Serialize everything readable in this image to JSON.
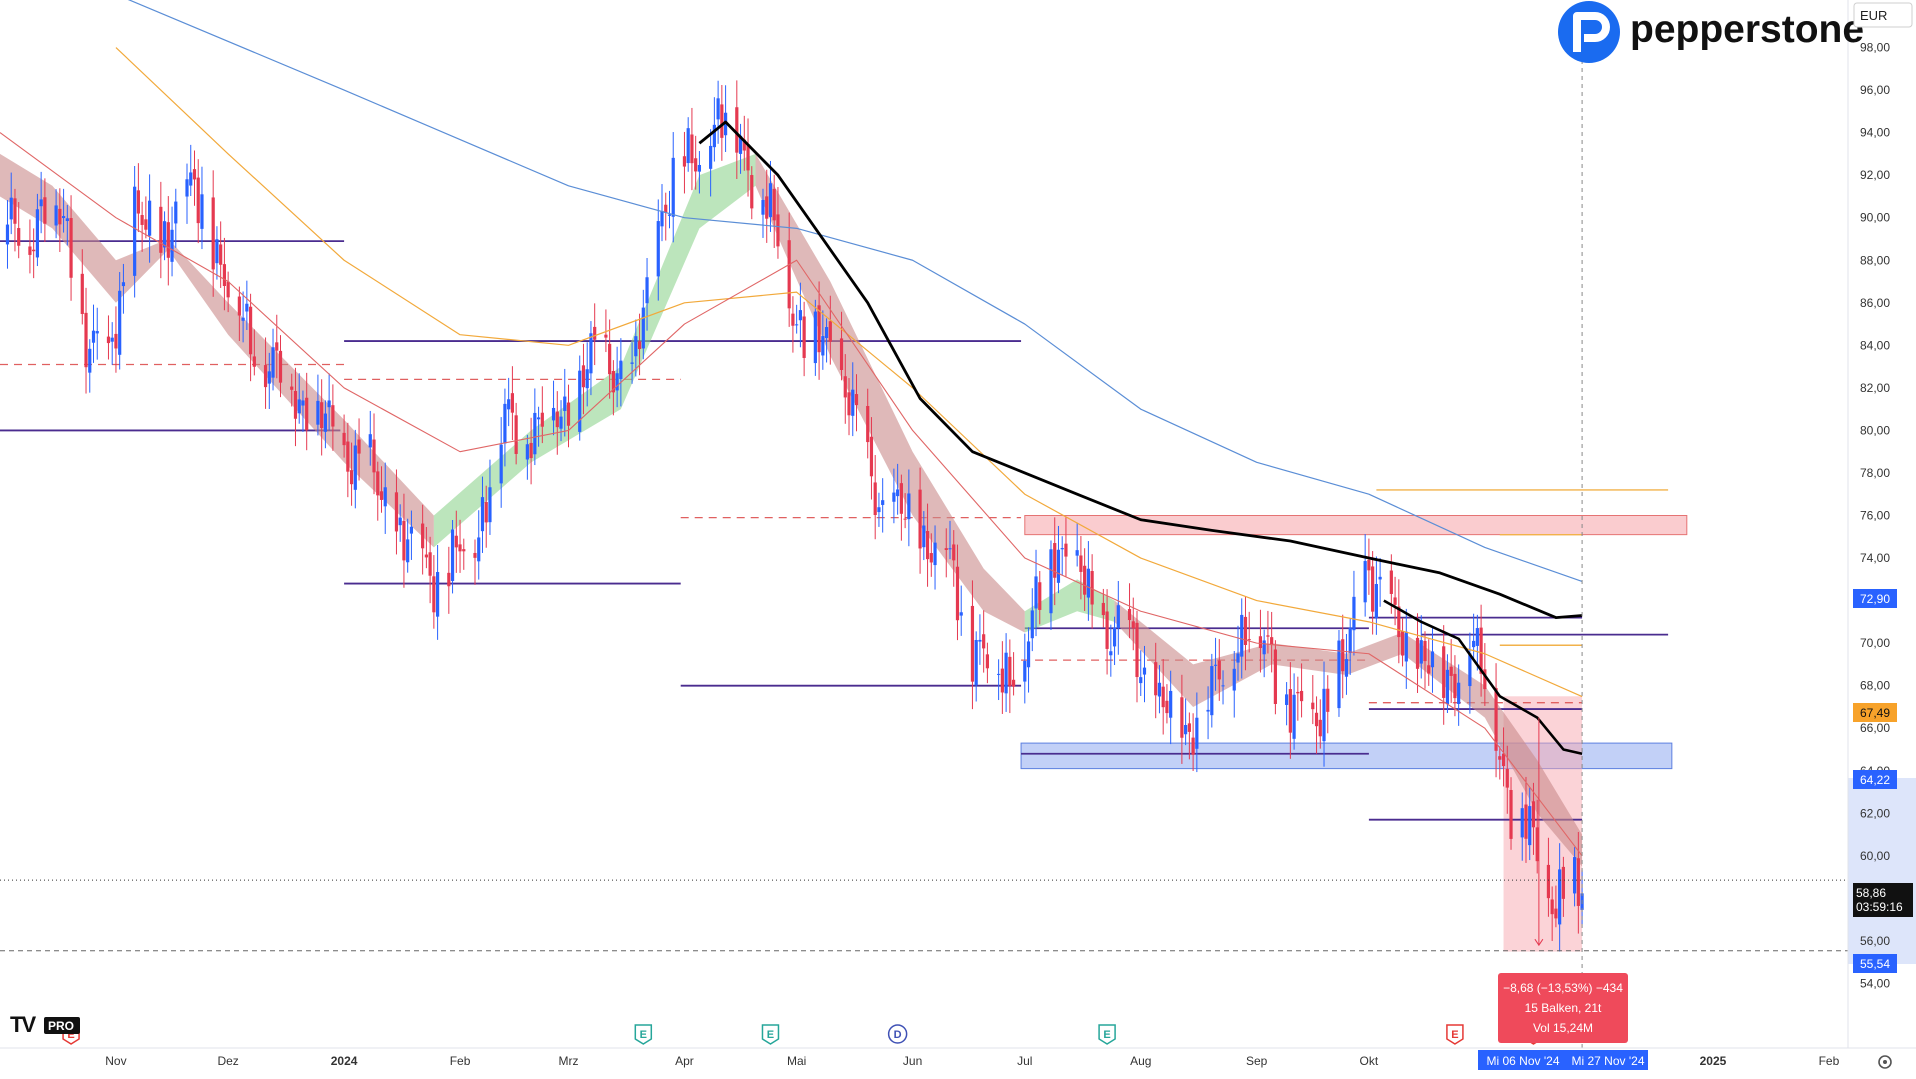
{
  "header": {
    "logo_text": "pepperstone",
    "currency_button": "EUR"
  },
  "tv_logo": "TV",
  "tv_badge": "PRO",
  "measure_box": {
    "line1": "−8,68 (−13,53%) −434",
    "line2": "15 Balken, 21t",
    "line3": "Vol 15,24M"
  },
  "price_tags": {
    "sma_blue": "72,90",
    "sma_orange": "67,49",
    "zone_level": "64,22",
    "last_price": "58,86",
    "countdown": "03:59:16",
    "low_level": "55,54"
  },
  "date_tags": {
    "start": "Mi 06 Nov '24",
    "end": "Mi 27 Nov '24"
  },
  "event_markers": [
    {
      "letter": "E",
      "color": "#e53935",
      "date": "2023-10-20"
    },
    {
      "letter": "E",
      "color": "#26a69a",
      "date": "2024-03-21"
    },
    {
      "letter": "E",
      "color": "#26a69a",
      "date": "2024-04-24"
    },
    {
      "letter": "D",
      "color": "#3f51b5",
      "date": "2024-05-28"
    },
    {
      "letter": "E",
      "color": "#26a69a",
      "date": "2024-07-23"
    },
    {
      "letter": "E",
      "color": "#e53935",
      "date": "2024-10-24"
    },
    {
      "letter": "E",
      "color": "#e53935",
      "date": "2024-11-14"
    }
  ],
  "colors": {
    "up": "#2962ff",
    "down": "#e53950",
    "sma_blue": "#5b8ed6",
    "sma_orange": "#f2a93b",
    "ema_red": "#e06666",
    "black_ma": "#000000",
    "level_line": "#4a2c8f",
    "dashed_level": "#e06060",
    "ribbon_bear": "#c98a8a",
    "ribbon_bull": "#8fd48f",
    "zone_red": "#f5a3a8",
    "zone_blue": "#8faaf0"
  },
  "chart_data": {
    "type": "candlestick",
    "currency": "EUR",
    "ylim": [
      52,
      100
    ],
    "y_ticks": [
      "54,00",
      "56,00",
      "58,00",
      "60,00",
      "62,00",
      "64,00",
      "66,00",
      "68,00",
      "70,00",
      "72,00",
      "74,00",
      "76,00",
      "78,00",
      "80,00",
      "82,00",
      "84,00",
      "86,00",
      "88,00",
      "90,00",
      "92,00",
      "94,00",
      "96,00",
      "98,00"
    ],
    "x_ticks": [
      {
        "label": "Nov",
        "date": "2023-11-01"
      },
      {
        "label": "Dez",
        "date": "2023-12-01"
      },
      {
        "label": "2024",
        "date": "2024-01-01"
      },
      {
        "label": "Feb",
        "date": "2024-02-01"
      },
      {
        "label": "Mrz",
        "date": "2024-03-01"
      },
      {
        "label": "Apr",
        "date": "2024-04-01"
      },
      {
        "label": "Mai",
        "date": "2024-05-01"
      },
      {
        "label": "Jun",
        "date": "2024-06-01"
      },
      {
        "label": "Jul",
        "date": "2024-07-01"
      },
      {
        "label": "Aug",
        "date": "2024-08-01"
      },
      {
        "label": "Sep",
        "date": "2024-09-01"
      },
      {
        "label": "Okt",
        "date": "2024-10-01"
      },
      {
        "label": "2025",
        "date": "2025-01-01"
      },
      {
        "label": "Feb",
        "date": "2025-02-01"
      }
    ],
    "close_path": [
      [
        "2023-10-01",
        90.0
      ],
      [
        "2023-10-08",
        88.5
      ],
      [
        "2023-10-12",
        91.0
      ],
      [
        "2023-10-18",
        89.5
      ],
      [
        "2023-10-24",
        84.5
      ],
      [
        "2023-10-30",
        83.0
      ],
      [
        "2023-11-06",
        90.5
      ],
      [
        "2023-11-12",
        88.0
      ],
      [
        "2023-11-18",
        91.5
      ],
      [
        "2023-11-26",
        90.0
      ],
      [
        "2023-12-02",
        86.0
      ],
      [
        "2023-12-10",
        83.5
      ],
      [
        "2023-12-18",
        82.0
      ],
      [
        "2023-12-28",
        80.0
      ],
      [
        "2024-01-08",
        78.0
      ],
      [
        "2024-01-18",
        74.5
      ],
      [
        "2024-01-27",
        73.0
      ],
      [
        "2024-02-05",
        75.0
      ],
      [
        "2024-02-13",
        80.5
      ],
      [
        "2024-02-22",
        80.0
      ],
      [
        "2024-03-02",
        81.5
      ],
      [
        "2024-03-10",
        84.0
      ],
      [
        "2024-03-18",
        82.0
      ],
      [
        "2024-03-25",
        90.0
      ],
      [
        "2024-04-01",
        92.5
      ],
      [
        "2024-04-08",
        94.0
      ],
      [
        "2024-04-15",
        94.5
      ],
      [
        "2024-04-21",
        91.0
      ],
      [
        "2024-04-26",
        89.0
      ],
      [
        "2024-05-03",
        84.0
      ],
      [
        "2024-05-10",
        84.5
      ],
      [
        "2024-05-17",
        80.0
      ],
      [
        "2024-05-24",
        76.5
      ],
      [
        "2024-06-02",
        75.5
      ],
      [
        "2024-06-10",
        74.0
      ],
      [
        "2024-06-17",
        70.0
      ],
      [
        "2024-06-25",
        68.5
      ],
      [
        "2024-07-02",
        70.0
      ],
      [
        "2024-07-09",
        75.0
      ],
      [
        "2024-07-16",
        73.0
      ],
      [
        "2024-07-23",
        70.5
      ],
      [
        "2024-07-30",
        70.0
      ],
      [
        "2024-08-06",
        67.0
      ],
      [
        "2024-08-13",
        66.0
      ],
      [
        "2024-08-20",
        67.5
      ],
      [
        "2024-08-27",
        70.5
      ],
      [
        "2024-09-04",
        70.0
      ],
      [
        "2024-09-11",
        66.5
      ],
      [
        "2024-09-18",
        67.0
      ],
      [
        "2024-09-25",
        69.0
      ],
      [
        "2024-09-30",
        74.0
      ],
      [
        "2024-10-07",
        71.0
      ],
      [
        "2024-10-14",
        69.5
      ],
      [
        "2024-10-21",
        68.0
      ],
      [
        "2024-10-28",
        70.0
      ],
      [
        "2024-11-04",
        66.5
      ],
      [
        "2024-11-08",
        62.0
      ],
      [
        "2024-11-14",
        61.0
      ],
      [
        "2024-11-20",
        57.5
      ],
      [
        "2024-11-27",
        58.86
      ]
    ],
    "series": [
      {
        "kind": "sma_blue",
        "points": [
          [
            "2023-11-01",
            100.5
          ],
          [
            "2024-01-01",
            96.0
          ],
          [
            "2024-03-01",
            91.5
          ],
          [
            "2024-04-01",
            90.0
          ],
          [
            "2024-05-01",
            89.5
          ],
          [
            "2024-06-01",
            88.0
          ],
          [
            "2024-07-01",
            85.0
          ],
          [
            "2024-08-01",
            81.0
          ],
          [
            "2024-09-01",
            78.5
          ],
          [
            "2024-10-01",
            77.0
          ],
          [
            "2024-11-01",
            74.5
          ],
          [
            "2024-11-27",
            72.9
          ]
        ]
      },
      {
        "kind": "sma_orange",
        "points": [
          [
            "2023-11-01",
            98.0
          ],
          [
            "2023-12-01",
            93.0
          ],
          [
            "2024-01-01",
            88.0
          ],
          [
            "2024-02-01",
            84.5
          ],
          [
            "2024-03-01",
            84.0
          ],
          [
            "2024-04-01",
            86.0
          ],
          [
            "2024-05-01",
            86.5
          ],
          [
            "2024-06-01",
            82.0
          ],
          [
            "2024-07-01",
            77.0
          ],
          [
            "2024-08-01",
            74.0
          ],
          [
            "2024-09-01",
            72.0
          ],
          [
            "2024-10-01",
            71.0
          ],
          [
            "2024-11-01",
            69.5
          ],
          [
            "2024-11-27",
            67.49
          ]
        ]
      },
      {
        "kind": "ema_red",
        "points": [
          [
            "2023-10-01",
            94.0
          ],
          [
            "2023-11-01",
            90.0
          ],
          [
            "2023-12-01",
            87.0
          ],
          [
            "2024-01-01",
            82.0
          ],
          [
            "2024-02-01",
            79.0
          ],
          [
            "2024-03-01",
            80.0
          ],
          [
            "2024-04-01",
            85.0
          ],
          [
            "2024-05-01",
            88.0
          ],
          [
            "2024-06-01",
            80.0
          ],
          [
            "2024-07-01",
            74.0
          ],
          [
            "2024-08-01",
            71.5
          ],
          [
            "2024-09-01",
            70.0
          ],
          [
            "2024-10-01",
            69.5
          ],
          [
            "2024-11-01",
            66.0
          ],
          [
            "2024-11-27",
            60.0
          ]
        ]
      },
      {
        "kind": "black_ma",
        "points": [
          [
            "2024-04-05",
            93.5
          ],
          [
            "2024-04-12",
            94.5
          ],
          [
            "2024-04-26",
            92.0
          ],
          [
            "2024-05-08",
            89.0
          ],
          [
            "2024-05-20",
            86.0
          ],
          [
            "2024-06-03",
            81.5
          ],
          [
            "2024-06-17",
            79.0
          ],
          [
            "2024-07-01",
            78.0
          ],
          [
            "2024-07-15",
            77.0
          ],
          [
            "2024-08-01",
            75.8
          ],
          [
            "2024-08-20",
            75.3
          ],
          [
            "2024-09-10",
            74.8
          ],
          [
            "2024-10-01",
            74.0
          ],
          [
            "2024-10-20",
            73.3
          ],
          [
            "2024-11-05",
            72.3
          ],
          [
            "2024-11-20",
            71.2
          ],
          [
            "2024-11-27",
            71.3
          ]
        ]
      },
      {
        "kind": "black_ma_short",
        "points": [
          [
            "2024-10-05",
            72.0
          ],
          [
            "2024-10-15",
            71.0
          ],
          [
            "2024-10-25",
            70.2
          ],
          [
            "2024-11-05",
            67.5
          ],
          [
            "2024-11-15",
            66.5
          ],
          [
            "2024-11-22",
            65.0
          ],
          [
            "2024-11-27",
            64.8
          ]
        ]
      }
    ],
    "ribbons": [
      {
        "tone": "bear",
        "upper": [
          [
            "2023-10-01",
            93.0
          ],
          [
            "2023-10-15",
            91.5
          ],
          [
            "2023-11-01",
            88.0
          ],
          [
            "2023-11-15",
            89.0
          ],
          [
            "2023-12-01",
            86.0
          ],
          [
            "2024-01-01",
            80.5
          ],
          [
            "2024-01-25",
            76.0
          ]
        ],
        "lower": [
          [
            "2023-10-01",
            91.0
          ],
          [
            "2023-10-15",
            89.5
          ],
          [
            "2023-11-01",
            86.0
          ],
          [
            "2023-11-15",
            88.5
          ],
          [
            "2023-12-01",
            84.5
          ],
          [
            "2024-01-01",
            78.5
          ],
          [
            "2024-01-25",
            74.5
          ]
        ]
      },
      {
        "tone": "bull",
        "upper": [
          [
            "2024-01-25",
            76.0
          ],
          [
            "2024-02-20",
            80.0
          ],
          [
            "2024-03-15",
            83.0
          ],
          [
            "2024-04-05",
            92.0
          ],
          [
            "2024-04-20",
            93.0
          ]
        ],
        "lower": [
          [
            "2024-01-25",
            74.5
          ],
          [
            "2024-02-20",
            78.5
          ],
          [
            "2024-03-15",
            81.0
          ],
          [
            "2024-04-05",
            89.5
          ],
          [
            "2024-04-20",
            91.5
          ]
        ]
      },
      {
        "tone": "bear",
        "upper": [
          [
            "2024-04-20",
            93.0
          ],
          [
            "2024-05-10",
            87.0
          ],
          [
            "2024-06-01",
            79.0
          ],
          [
            "2024-06-20",
            73.5
          ],
          [
            "2024-07-01",
            71.5
          ]
        ],
        "lower": [
          [
            "2024-04-20",
            91.5
          ],
          [
            "2024-05-10",
            83.5
          ],
          [
            "2024-06-01",
            76.0
          ],
          [
            "2024-06-20",
            71.5
          ],
          [
            "2024-07-01",
            70.5
          ]
        ]
      },
      {
        "tone": "bull",
        "upper": [
          [
            "2024-07-01",
            71.5
          ],
          [
            "2024-07-15",
            73.0
          ],
          [
            "2024-07-25",
            72.0
          ]
        ],
        "lower": [
          [
            "2024-07-01",
            70.5
          ],
          [
            "2024-07-15",
            71.5
          ],
          [
            "2024-07-25",
            71.0
          ]
        ]
      },
      {
        "tone": "bear",
        "upper": [
          [
            "2024-07-25",
            72.0
          ],
          [
            "2024-08-15",
            69.0
          ],
          [
            "2024-09-05",
            70.0
          ],
          [
            "2024-09-25",
            69.5
          ],
          [
            "2024-10-10",
            70.5
          ],
          [
            "2024-11-01",
            68.0
          ],
          [
            "2024-11-15",
            64.5
          ],
          [
            "2024-11-27",
            61.0
          ]
        ],
        "lower": [
          [
            "2024-07-25",
            71.0
          ],
          [
            "2024-08-15",
            67.0
          ],
          [
            "2024-09-05",
            69.0
          ],
          [
            "2024-09-25",
            68.5
          ],
          [
            "2024-10-10",
            69.5
          ],
          [
            "2024-11-01",
            66.5
          ],
          [
            "2024-11-15",
            62.0
          ],
          [
            "2024-11-27",
            59.5
          ]
        ]
      }
    ],
    "horizontal_levels": [
      {
        "y": 88.9,
        "from": "2023-10-01",
        "to": "2024-01-01",
        "style": "solid"
      },
      {
        "y": 84.2,
        "from": "2024-01-01",
        "to": "2024-06-30",
        "style": "solid"
      },
      {
        "y": 80.0,
        "from": "2023-10-01",
        "to": "2023-12-31",
        "style": "solid"
      },
      {
        "y": 72.8,
        "from": "2024-01-01",
        "to": "2024-03-31",
        "style": "solid"
      },
      {
        "y": 68.0,
        "from": "2024-03-31",
        "to": "2024-06-30",
        "style": "solid"
      },
      {
        "y": 70.7,
        "from": "2024-07-01",
        "to": "2024-10-01",
        "style": "solid"
      },
      {
        "y": 71.2,
        "from": "2024-10-01",
        "to": "2024-11-27",
        "style": "solid"
      },
      {
        "y": 70.4,
        "from": "2024-10-15",
        "to": "2024-12-20",
        "style": "solid"
      },
      {
        "y": 66.9,
        "from": "2024-10-01",
        "to": "2024-11-27",
        "style": "solid"
      },
      {
        "y": 64.8,
        "from": "2024-06-30",
        "to": "2024-10-01",
        "style": "solid"
      },
      {
        "y": 61.7,
        "from": "2024-10-01",
        "to": "2024-11-27",
        "style": "solid"
      },
      {
        "y": 83.1,
        "from": "2023-10-01",
        "to": "2024-01-01",
        "style": "dashed"
      },
      {
        "y": 82.4,
        "from": "2024-01-01",
        "to": "2024-03-31",
        "style": "dashed"
      },
      {
        "y": 75.9,
        "from": "2024-03-31",
        "to": "2024-06-30",
        "style": "dashed"
      },
      {
        "y": 69.2,
        "from": "2024-06-30",
        "to": "2024-10-01",
        "style": "dashed"
      },
      {
        "y": 67.2,
        "from": "2024-10-01",
        "to": "2024-11-27",
        "style": "dashed"
      },
      {
        "y": 77.2,
        "from": "2024-10-03",
        "to": "2024-12-20",
        "style": "solid-orange"
      },
      {
        "y": 75.1,
        "from": "2024-11-05",
        "to": "2024-11-27",
        "style": "solid-orange"
      },
      {
        "y": 69.9,
        "from": "2024-11-05",
        "to": "2024-11-27",
        "style": "solid-orange"
      }
    ],
    "zones": [
      {
        "tone": "red",
        "y_top": 76.0,
        "y_bottom": 75.1,
        "from": "2024-07-01",
        "to": "2024-12-25"
      },
      {
        "tone": "blue",
        "y_top": 65.3,
        "y_bottom": 64.1,
        "from": "2024-06-30",
        "to": "2024-12-21"
      }
    ],
    "measure_range": {
      "from": "2024-11-06",
      "to": "2024-11-27",
      "y_top": 67.5,
      "y_bottom": 55.5
    },
    "crosshair": {
      "price": 58.86,
      "date": "2024-11-27"
    },
    "last_price": 58.86,
    "low": 55.54
  }
}
